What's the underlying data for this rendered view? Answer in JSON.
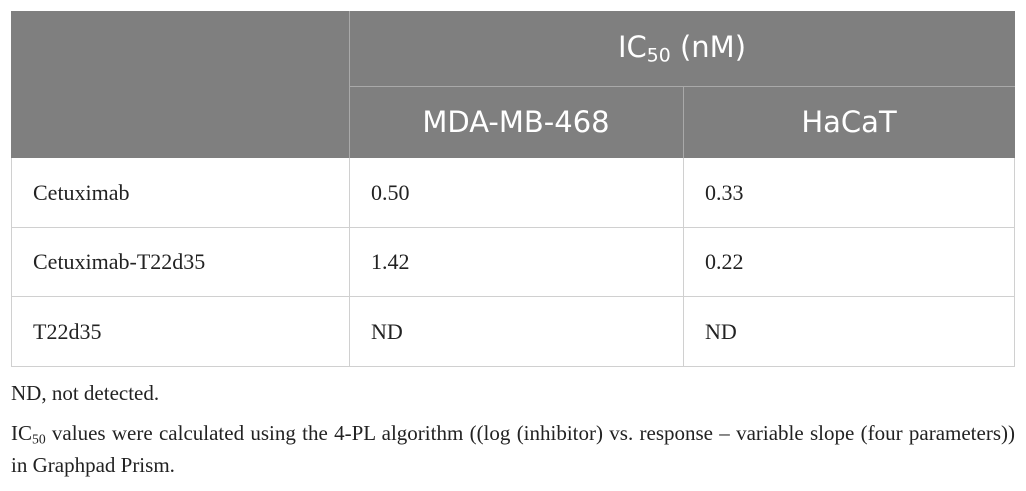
{
  "table": {
    "group_header": {
      "prefix": "IC",
      "sub": "50",
      "suffix": " (nM)"
    },
    "columns": [
      "MDA-MB-468",
      "HaCaT"
    ],
    "rows": [
      [
        "Cetuximab",
        "0.50",
        "0.33"
      ],
      [
        "Cetuximab-T22d35",
        "1.42",
        "0.22"
      ],
      [
        "T22d35",
        "ND",
        "ND"
      ]
    ]
  },
  "footnotes": {
    "abbreviation": "ND, not detected.",
    "method": {
      "prefix": "IC",
      "sub": "50",
      "text": " values were calculated using the 4-PL algorithm ((log (inhibitor) vs. response – variable slope (four parameters)) in Graphpad Prism."
    }
  }
}
